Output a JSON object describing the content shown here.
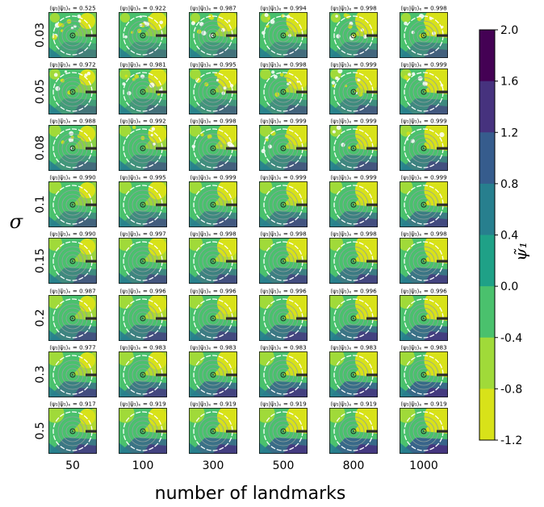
{
  "chart_data": {
    "type": "heatmap",
    "xlabel": "number of landmarks",
    "ylabel": "σ",
    "col_labels": [
      "50",
      "100",
      "300",
      "500",
      "800",
      "1000"
    ],
    "row_labels": [
      "0.03",
      "0.05",
      "0.08",
      "0.1",
      "0.15",
      "0.2",
      "0.3",
      "0.5"
    ],
    "panel_title_prefix": "⟨ψ₁|ψ̃₁⟩ₑ = ",
    "panel_scores": [
      [
        "0.525",
        "0.922",
        "0.987",
        "0.994",
        "0.998",
        "0.998"
      ],
      [
        "0.972",
        "0.981",
        "0.995",
        "0.998",
        "0.999",
        "0.999"
      ],
      [
        "0.988",
        "0.992",
        "0.998",
        "0.999",
        "0.999",
        "0.999"
      ],
      [
        "0.990",
        "0.995",
        "0.999",
        "0.999",
        "0.999",
        "0.999"
      ],
      [
        "0.990",
        "0.997",
        "0.998",
        "0.998",
        "0.998",
        "0.998"
      ],
      [
        "0.987",
        "0.996",
        "0.996",
        "0.996",
        "0.996",
        "0.996"
      ],
      [
        "0.977",
        "0.983",
        "0.983",
        "0.983",
        "0.983",
        "0.983"
      ],
      [
        "0.917",
        "0.919",
        "0.919",
        "0.919",
        "0.919",
        "0.919"
      ]
    ],
    "colorbar": {
      "label": "ψ̃₁",
      "ticks": [
        "2.0",
        "1.6",
        "1.2",
        "0.8",
        "0.4",
        "0.0",
        "-0.4",
        "-0.8",
        "-1.2"
      ],
      "levels": [
        {
          "range": [
            1.6,
            2.0
          ],
          "color": "#440154"
        },
        {
          "range": [
            1.2,
            1.6
          ],
          "color": "#46327e"
        },
        {
          "range": [
            0.8,
            1.2
          ],
          "color": "#365c8d"
        },
        {
          "range": [
            0.4,
            0.8
          ],
          "color": "#277f8e"
        },
        {
          "range": [
            0.0,
            0.4
          ],
          "color": "#1fa187"
        },
        {
          "range": [
            -0.4,
            0.0
          ],
          "color": "#4ac16d"
        },
        {
          "range": [
            -0.8,
            -0.4
          ],
          "color": "#a0da39"
        },
        {
          "range": [
            -1.2,
            -0.8
          ],
          "color": "#d8e219"
        }
      ]
    }
  }
}
